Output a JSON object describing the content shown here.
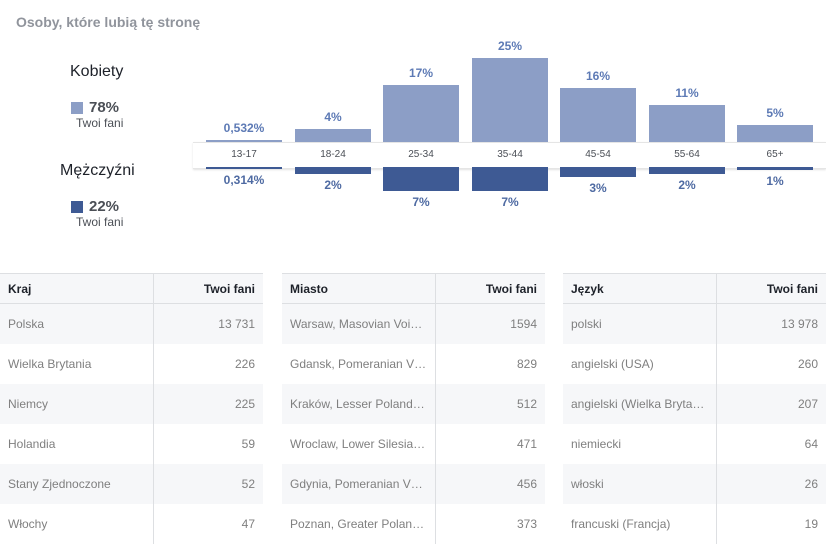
{
  "title": "Osoby, które lubią tę stronę",
  "gender": {
    "female": {
      "name": "Kobiety",
      "pct": "78%",
      "sub": "Twoi fani",
      "color": "#8c9ec6"
    },
    "male": {
      "name": "Mężczyźni",
      "pct": "22%",
      "sub": "Twoi fani",
      "color": "#3e5a94"
    }
  },
  "age_chart": {
    "groups": [
      "13-17",
      "18-24",
      "25-34",
      "35-44",
      "45-54",
      "55-64",
      "65+"
    ],
    "female": [
      0.532,
      4,
      17,
      25,
      16,
      11,
      5
    ],
    "male": [
      0.314,
      2,
      7,
      7,
      3,
      2,
      1
    ],
    "female_labels": [
      "0,532%",
      "4%",
      "17%",
      "25%",
      "16%",
      "11%",
      "5%"
    ],
    "male_labels": [
      "0,314%",
      "2%",
      "7%",
      "7%",
      "3%",
      "2%",
      "1%"
    ]
  },
  "tables": [
    {
      "col1": "Kraj",
      "col2": "Twoi fani",
      "rows": [
        {
          "name": "Polska",
          "value": "13 731"
        },
        {
          "name": "Wielka Brytania",
          "value": "226"
        },
        {
          "name": "Niemcy",
          "value": "225"
        },
        {
          "name": "Holandia",
          "value": "59"
        },
        {
          "name": "Stany Zjednoczone",
          "value": "52"
        },
        {
          "name": "Włochy",
          "value": "47"
        }
      ]
    },
    {
      "col1": "Miasto",
      "col2": "Twoi fani",
      "rows": [
        {
          "name": "Warsaw, Masovian Voi…",
          "value": "1594"
        },
        {
          "name": "Gdansk, Pomeranian V…",
          "value": "829"
        },
        {
          "name": "Kraków, Lesser Poland…",
          "value": "512"
        },
        {
          "name": "Wroclaw, Lower Silesia…",
          "value": "471"
        },
        {
          "name": "Gdynia, Pomeranian V…",
          "value": "456"
        },
        {
          "name": "Poznan, Greater Polan…",
          "value": "373"
        }
      ]
    },
    {
      "col1": "Język",
      "col2": "Twoi fani",
      "rows": [
        {
          "name": "polski",
          "value": "13 978"
        },
        {
          "name": "angielski (USA)",
          "value": "260"
        },
        {
          "name": "angielski (Wielka Bryta…",
          "value": "207"
        },
        {
          "name": "niemiecki",
          "value": "64"
        },
        {
          "name": "włoski",
          "value": "26"
        },
        {
          "name": "francuski (Francja)",
          "value": "19"
        }
      ]
    }
  ]
}
